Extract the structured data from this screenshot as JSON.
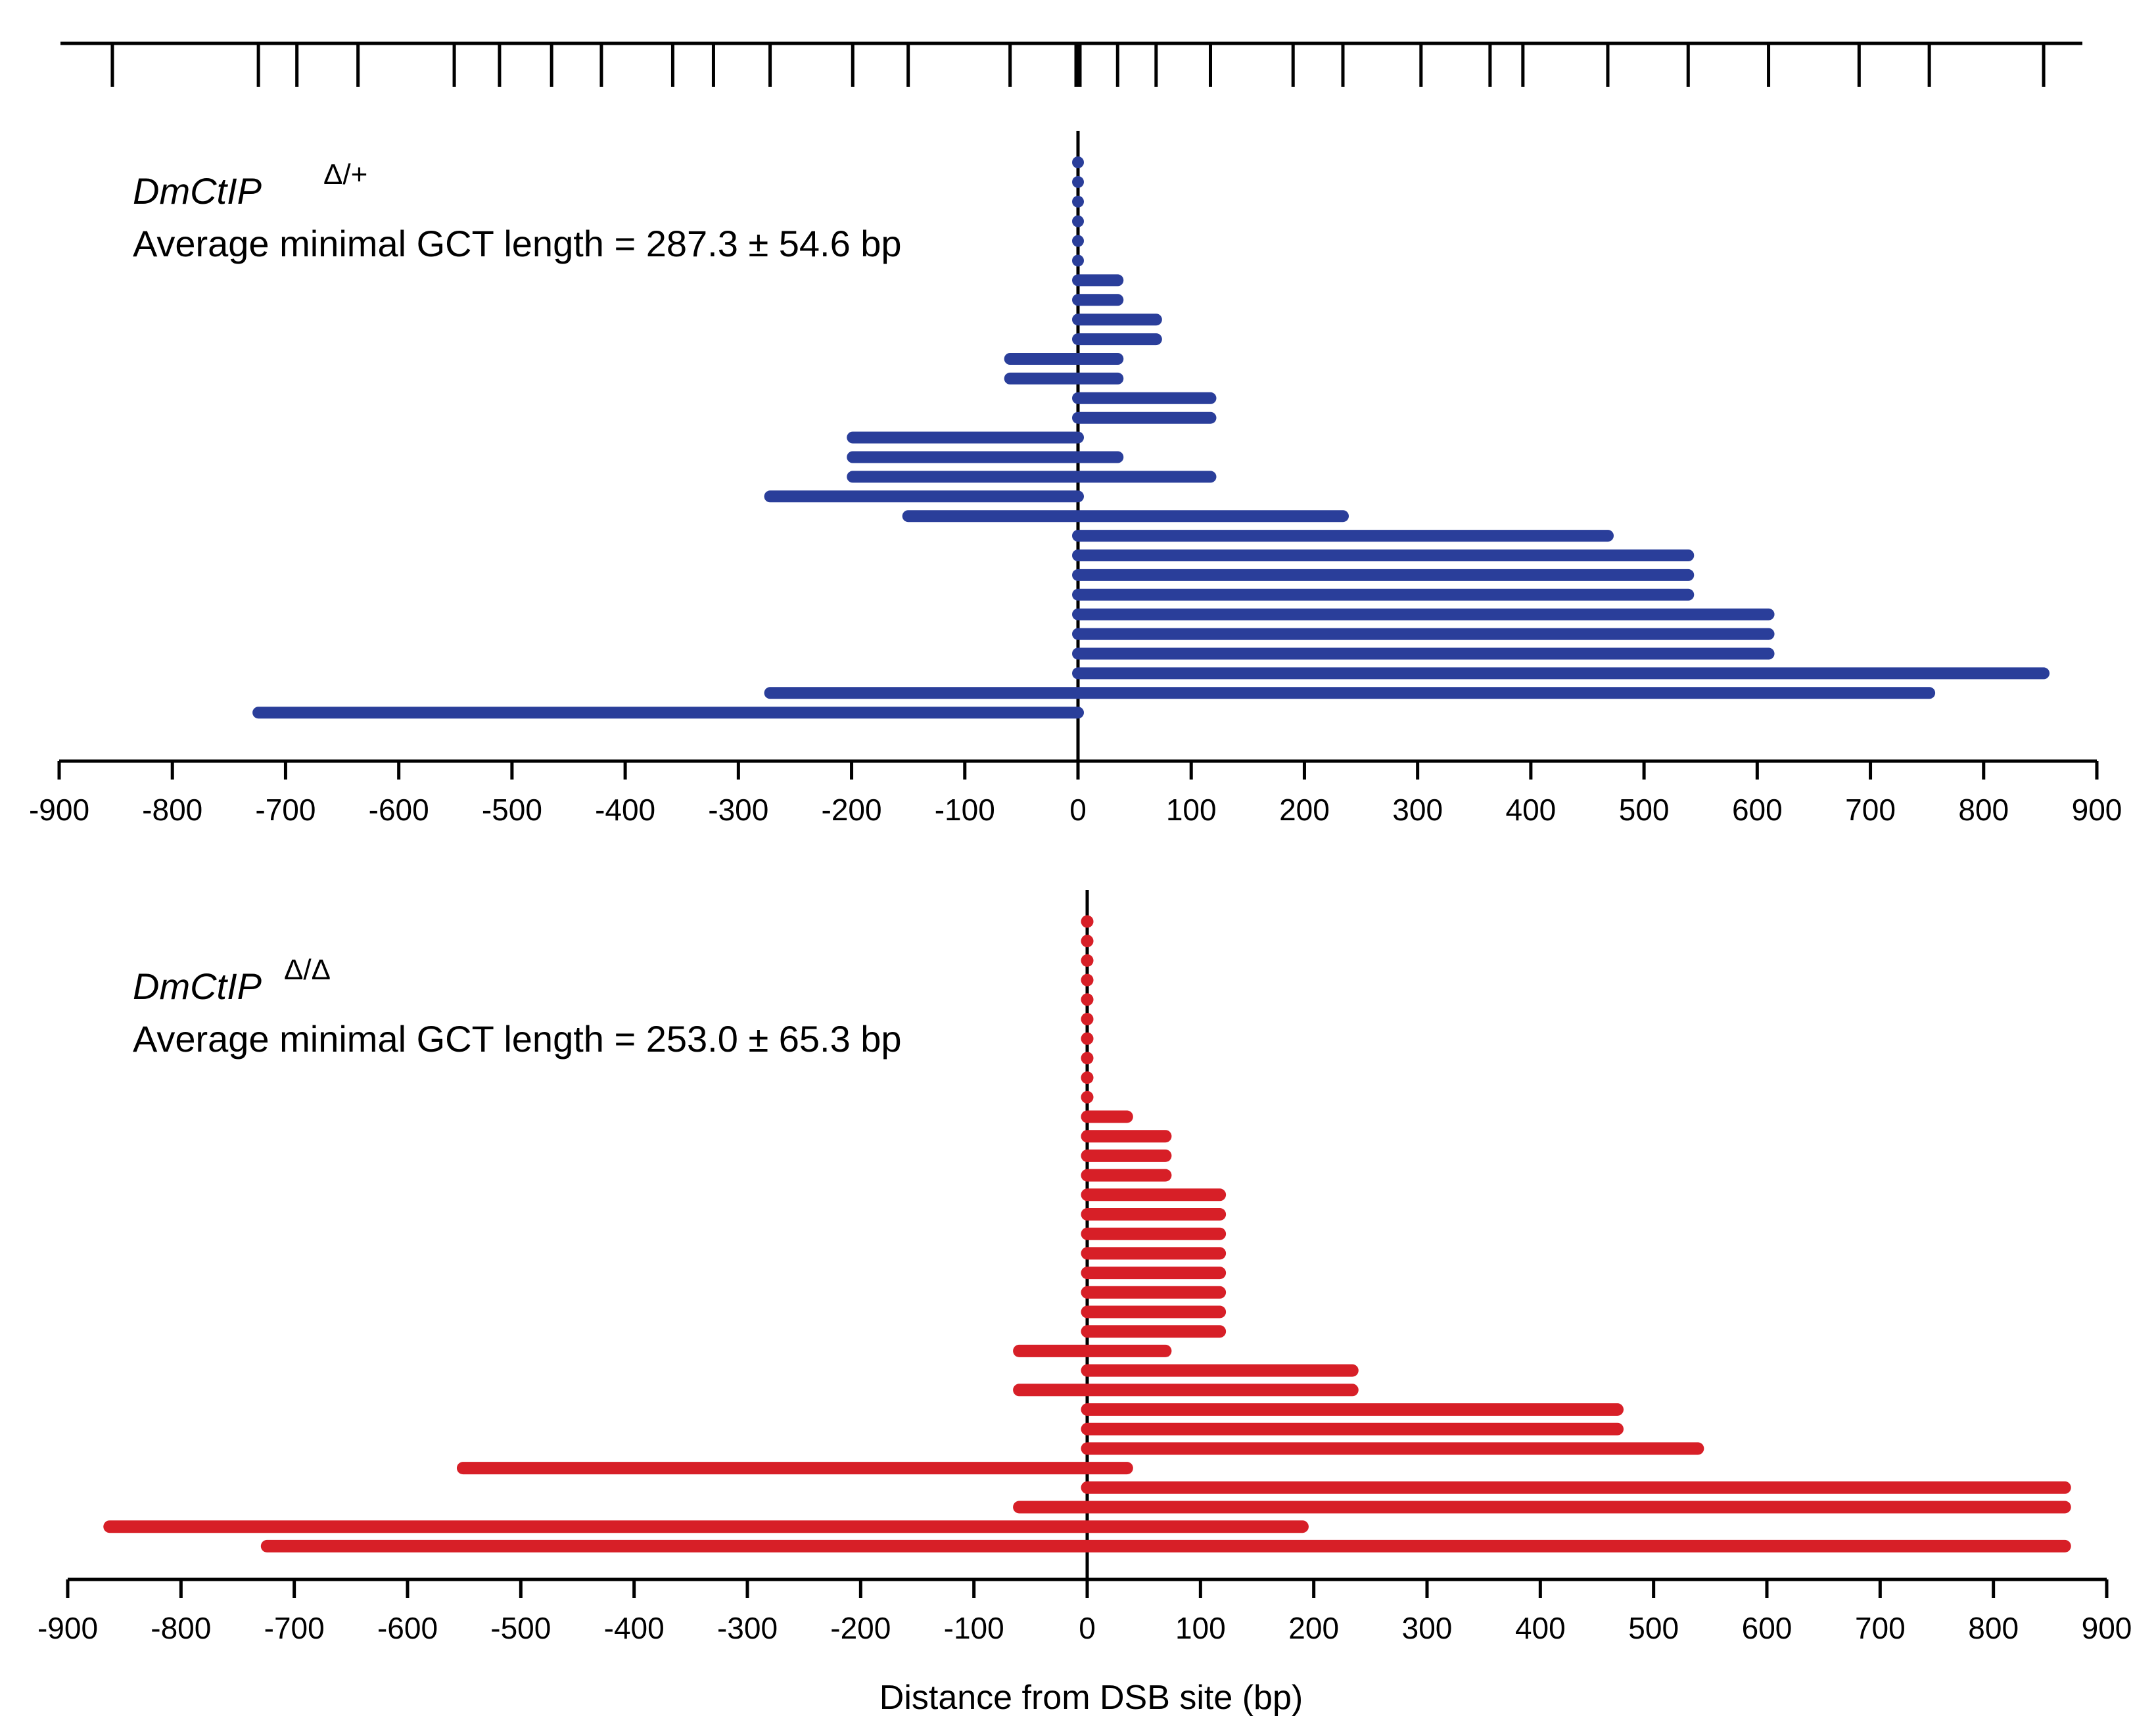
{
  "chart_data": [
    {
      "type": "bar",
      "orientation": "horizontal-range",
      "panel": "top",
      "genotype": "DmCtIP",
      "genotype_superscript": "Δ/+",
      "annotation": "Average minimal GCT length = 287.3 ± 54.6 bp",
      "xlim": [
        -900,
        900
      ],
      "xticks": [
        "-900",
        "-800",
        "-700",
        "-600",
        "-500",
        "-400",
        "-300",
        "-200",
        "-100",
        "0",
        "100",
        "200",
        "300",
        "400",
        "500",
        "600",
        "700",
        "800",
        "900"
      ],
      "xlabel": "",
      "color": "#2a3e9a",
      "marker_ticks": [
        -853,
        -724,
        -690,
        -636,
        -551,
        -511,
        -465,
        -421,
        -358,
        -322,
        -272,
        -199,
        -150,
        -60,
        0,
        35,
        69,
        117,
        190,
        234,
        303,
        364,
        393,
        468,
        539,
        610,
        690,
        752,
        853
      ],
      "tracts": [
        [
          0,
          0
        ],
        [
          0,
          0
        ],
        [
          0,
          0
        ],
        [
          0,
          0
        ],
        [
          0,
          0
        ],
        [
          0,
          0
        ],
        [
          0,
          35
        ],
        [
          0,
          35
        ],
        [
          0,
          69
        ],
        [
          0,
          69
        ],
        [
          -60,
          35
        ],
        [
          -60,
          35
        ],
        [
          0,
          117
        ],
        [
          0,
          117
        ],
        [
          -199,
          0
        ],
        [
          -199,
          35
        ],
        [
          -199,
          117
        ],
        [
          -272,
          0
        ],
        [
          -150,
          234
        ],
        [
          0,
          468
        ],
        [
          0,
          539
        ],
        [
          0,
          539
        ],
        [
          0,
          539
        ],
        [
          0,
          610
        ],
        [
          0,
          610
        ],
        [
          0,
          610
        ],
        [
          0,
          853
        ],
        [
          -272,
          752
        ],
        [
          -724,
          0
        ]
      ]
    },
    {
      "type": "bar",
      "orientation": "horizontal-range",
      "panel": "bottom",
      "genotype": "DmCtIP",
      "genotype_superscript": "Δ/Δ",
      "annotation": "Average minimal GCT length = 253.0 ± 65.3 bp",
      "xlim": [
        -900,
        900
      ],
      "xticks": [
        "-900",
        "-800",
        "-700",
        "-600",
        "-500",
        "-400",
        "-300",
        "-200",
        "-100",
        "0",
        "100",
        "200",
        "300",
        "400",
        "500",
        "600",
        "700",
        "800",
        "900"
      ],
      "xlabel": "Distance from DSB site (bp)",
      "color": "#d71f27",
      "tracts": [
        [
          0,
          0
        ],
        [
          0,
          0
        ],
        [
          0,
          0
        ],
        [
          0,
          0
        ],
        [
          0,
          0
        ],
        [
          0,
          0
        ],
        [
          0,
          0
        ],
        [
          0,
          0
        ],
        [
          0,
          0
        ],
        [
          0,
          0
        ],
        [
          0,
          35
        ],
        [
          0,
          69
        ],
        [
          0,
          69
        ],
        [
          0,
          69
        ],
        [
          0,
          117
        ],
        [
          0,
          117
        ],
        [
          0,
          117
        ],
        [
          0,
          117
        ],
        [
          0,
          117
        ],
        [
          0,
          117
        ],
        [
          0,
          117
        ],
        [
          0,
          117
        ],
        [
          -60,
          69
        ],
        [
          0,
          234
        ],
        [
          -60,
          234
        ],
        [
          0,
          468
        ],
        [
          0,
          468
        ],
        [
          0,
          539
        ],
        [
          -551,
          35
        ],
        [
          0,
          863
        ],
        [
          -60,
          863
        ],
        [
          -863,
          190
        ],
        [
          -724,
          863
        ]
      ]
    }
  ]
}
